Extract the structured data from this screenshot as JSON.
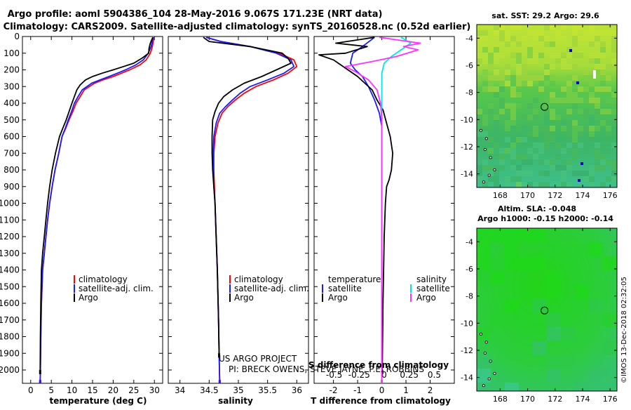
{
  "colors": {
    "climatology": "#ff0000",
    "satellite": "#1a1aff",
    "argo": "#000000",
    "satellite_salinity": "#00e6e6",
    "argo_salinity": "#ff33ff"
  },
  "title": {
    "line1": "Argo profile: aoml 5904386_104 28-May-2016 9.067S 171.23E (NRT data)",
    "line2": "Climatology: CARS2009. Satellite-adjusted climatology: synTS_20160528.nc (0.52d earlier)"
  },
  "credit": "©IMOS 13-Dec-2018 02:32:05",
  "chart_data": [
    {
      "id": "temperature",
      "type": "line",
      "xlabel": "temperature (deg C)",
      "ylabel": "",
      "xlim": [
        -2,
        32
      ],
      "ylim": [
        2080,
        0
      ],
      "xticks": [
        "0",
        "5",
        "10",
        "15",
        "20",
        "25",
        "30"
      ],
      "yticks": [
        "0",
        "100",
        "200",
        "300",
        "400",
        "500",
        "600",
        "700",
        "800",
        "900",
        "1000",
        "1100",
        "1200",
        "1300",
        "1400",
        "1500",
        "1600",
        "1700",
        "1800",
        "1900",
        "2000"
      ],
      "legend": [
        "climatology",
        "satellite-adj. clim.",
        "Argo"
      ],
      "series": [
        {
          "name": "climatology",
          "color": "#ff0000",
          "x": [
            29.9,
            29.5,
            29,
            28,
            26.5,
            24,
            22,
            20,
            17.5,
            15.5,
            13,
            12,
            11,
            10.2,
            9.3,
            8.5,
            7.6,
            6.8,
            5.9,
            5.2,
            4.6,
            4.1,
            3.7,
            3.3,
            2.9,
            2.6,
            2.45,
            2.35,
            2.3
          ],
          "y": [
            5,
            60,
            100,
            140,
            170,
            200,
            220,
            240,
            260,
            280,
            320,
            360,
            400,
            450,
            500,
            550,
            600,
            700,
            800,
            900,
            1000,
            1100,
            1200,
            1300,
            1400,
            1600,
            1800,
            2000,
            2060
          ]
        },
        {
          "name": "satellite-adj. clim.",
          "color": "#1a1aff",
          "x": [
            29.7,
            29.2,
            28.5,
            27.3,
            25.5,
            23,
            21,
            19,
            16.8,
            14.8,
            12.5,
            11.5,
            10.6,
            9.9,
            9.1,
            8.4,
            7.6,
            6.8,
            5.9,
            5.2,
            4.6,
            4.1,
            3.7,
            3.3,
            2.9,
            2.6,
            2.45,
            2.35,
            2.3
          ],
          "y": [
            5,
            60,
            100,
            140,
            170,
            200,
            220,
            240,
            260,
            280,
            320,
            360,
            400,
            450,
            500,
            550,
            600,
            700,
            800,
            900,
            1000,
            1100,
            1200,
            1300,
            1400,
            1600,
            1800,
            2000,
            2060
          ]
        },
        {
          "name": "Argo",
          "color": "#000000",
          "x": [
            29.6,
            29,
            28.7,
            28.6,
            27,
            25,
            22.5,
            20,
            17.3,
            15,
            13.3,
            12,
            11.2,
            10.6,
            10,
            9.3,
            8.6,
            7.8,
            7,
            6,
            5.2,
            4.6,
            4.1,
            3.7,
            3.3,
            2.9,
            2.6,
            2.45,
            2.35,
            2.3
          ],
          "y": [
            5,
            40,
            70,
            100,
            130,
            160,
            180,
            200,
            220,
            240,
            260,
            290,
            320,
            360,
            400,
            450,
            500,
            550,
            600,
            700,
            800,
            900,
            1000,
            1100,
            1200,
            1300,
            1400,
            1600,
            1800,
            2000
          ]
        }
      ]
    },
    {
      "id": "salinity",
      "type": "line",
      "xlabel": "salinity",
      "ylabel": "",
      "xlim": [
        33.8,
        36.2
      ],
      "ylim": [
        2080,
        0
      ],
      "xticks": [
        "34",
        "34.5",
        "35",
        "35.5",
        "36"
      ],
      "yticks": [],
      "legend": [
        "climatology",
        "satellite-adj. clim.",
        "Argo"
      ],
      "series": [
        {
          "name": "climatology",
          "color": "#ff0000",
          "x": [
            34.45,
            34.7,
            35.2,
            35.7,
            35.95,
            36.0,
            35.85,
            35.6,
            35.3,
            35.1,
            34.95,
            34.82,
            34.72,
            34.65,
            34.6,
            34.58,
            34.58,
            34.59,
            34.6,
            34.62,
            34.64,
            34.66,
            34.67,
            34.68
          ],
          "y": [
            5,
            30,
            60,
            100,
            140,
            180,
            220,
            260,
            300,
            340,
            380,
            420,
            460,
            520,
            600,
            700,
            800,
            900,
            1000,
            1200,
            1400,
            1700,
            1900,
            2060
          ]
        },
        {
          "name": "satellite-adj. clim.",
          "color": "#1a1aff",
          "x": [
            34.45,
            34.7,
            35.2,
            35.65,
            35.9,
            35.95,
            35.78,
            35.5,
            35.2,
            35.03,
            34.9,
            34.78,
            34.68,
            34.62,
            34.58,
            34.57,
            34.57,
            34.58,
            34.6,
            34.62,
            34.64,
            34.66,
            34.67,
            34.68
          ],
          "y": [
            5,
            30,
            60,
            100,
            140,
            180,
            220,
            260,
            300,
            340,
            380,
            420,
            460,
            520,
            600,
            700,
            800,
            900,
            1000,
            1200,
            1400,
            1700,
            1900,
            2060
          ]
        },
        {
          "name": "Argo",
          "color": "#000000",
          "x": [
            34.4,
            34.5,
            35.2,
            35.75,
            35.85,
            35.9,
            35.65,
            35.4,
            35.1,
            34.9,
            34.75,
            34.66,
            34.6,
            34.56,
            34.55,
            34.55,
            34.56,
            34.58,
            34.6,
            34.62,
            34.64,
            34.66,
            34.67
          ],
          "y": [
            5,
            30,
            60,
            100,
            130,
            160,
            200,
            240,
            280,
            320,
            360,
            400,
            450,
            500,
            600,
            700,
            800,
            900,
            1000,
            1200,
            1400,
            1700,
            1900
          ]
        }
      ]
    },
    {
      "id": "difference",
      "type": "line",
      "xlabel": "T difference from climatology",
      "top_xlabel": "S difference from climatology",
      "ylabel": "",
      "xlim": [
        -2.8,
        3.0
      ],
      "ylim": [
        2080,
        0
      ],
      "xticks": [
        "-2",
        "-1",
        "0",
        "1",
        "2"
      ],
      "top_xticks": [
        "-0.5",
        "-0.25",
        "0",
        "0.25",
        "0.5"
      ],
      "yticks": [],
      "legend_left_title": "temperature",
      "legend_left": [
        "satellite",
        "Argo"
      ],
      "legend_right_title": "salinity",
      "legend_right": [
        "satellite",
        "Argo"
      ],
      "series": [
        {
          "name": "temperature satellite",
          "color": "#1a1aff",
          "x": [
            -0.3,
            -0.8,
            -1.2,
            -1.3,
            -1.1,
            -0.8,
            -0.55,
            -0.3,
            -0.1,
            0,
            0,
            0,
            0,
            0,
            0
          ],
          "y": [
            5,
            60,
            100,
            160,
            200,
            240,
            300,
            380,
            460,
            540,
            600,
            800,
            1200,
            1700,
            2060
          ]
        },
        {
          "name": "temperature Argo",
          "color": "#000000",
          "x": [
            -0.3,
            -1.9,
            -0.6,
            -1.5,
            -2.6,
            -2.0,
            -1.6,
            -1.0,
            -0.7,
            -0.4,
            -0.2,
            0.05,
            0.2,
            0.35,
            0.45,
            0.4,
            0.3,
            0.2,
            0.15,
            0.1,
            0.05,
            0.02
          ],
          "y": [
            5,
            40,
            60,
            100,
            110,
            140,
            180,
            240,
            280,
            320,
            380,
            440,
            520,
            600,
            700,
            800,
            860,
            900,
            1000,
            1200,
            1600,
            2000
          ]
        },
        {
          "name": "salinity satellite",
          "color": "#00e6e6",
          "x": [
            0.8,
            1.2,
            0.8,
            0.4,
            0.1,
            0,
            0,
            0,
            0
          ],
          "y": [
            5,
            40,
            80,
            120,
            160,
            220,
            300,
            400,
            2060
          ]
        },
        {
          "name": "salinity Argo",
          "color": "#ff33ff",
          "x": [
            -0.1,
            1.6,
            0.9,
            1.5,
            0.6,
            -0.4,
            -1.5,
            -1.1,
            -0.55,
            -0.2,
            -0.05,
            0,
            0,
            0
          ],
          "y": [
            5,
            40,
            60,
            80,
            120,
            150,
            180,
            210,
            260,
            320,
            400,
            500,
            700,
            2060
          ]
        }
      ]
    }
  ],
  "maps": [
    {
      "id": "sst_map",
      "title1": "sat. SST: 29.2 Argo: 29.6",
      "title2": "",
      "xticks": [
        "168",
        "170",
        "172",
        "174",
        "176"
      ],
      "yticks": [
        "-4",
        "-6",
        "-8",
        "-10",
        "-12",
        "-14"
      ],
      "lon_range": [
        166.3,
        176.5
      ],
      "lat_range": [
        -15.0,
        -3.0
      ],
      "profile_lon": 171.23,
      "profile_lat": -9.067
    },
    {
      "id": "sla_map",
      "title1": "Altim. SLA: -0.048",
      "title2": "Argo h1000: -0.15 h2000: -0.14",
      "xticks": [
        "168",
        "170",
        "172",
        "174",
        "176"
      ],
      "yticks": [
        "-4",
        "-6",
        "-8",
        "-10",
        "-12",
        "-14"
      ],
      "lon_range": [
        166.3,
        176.5
      ],
      "lat_range": [
        -15.0,
        -3.0
      ],
      "profile_lon": 171.23,
      "profile_lat": -9.067
    }
  ],
  "project_note": {
    "line1": "US ARGO PROJECT",
    "line2": "PI: BRECK OWENS, STEVE JAYNE, P.E. ROBBINS"
  }
}
